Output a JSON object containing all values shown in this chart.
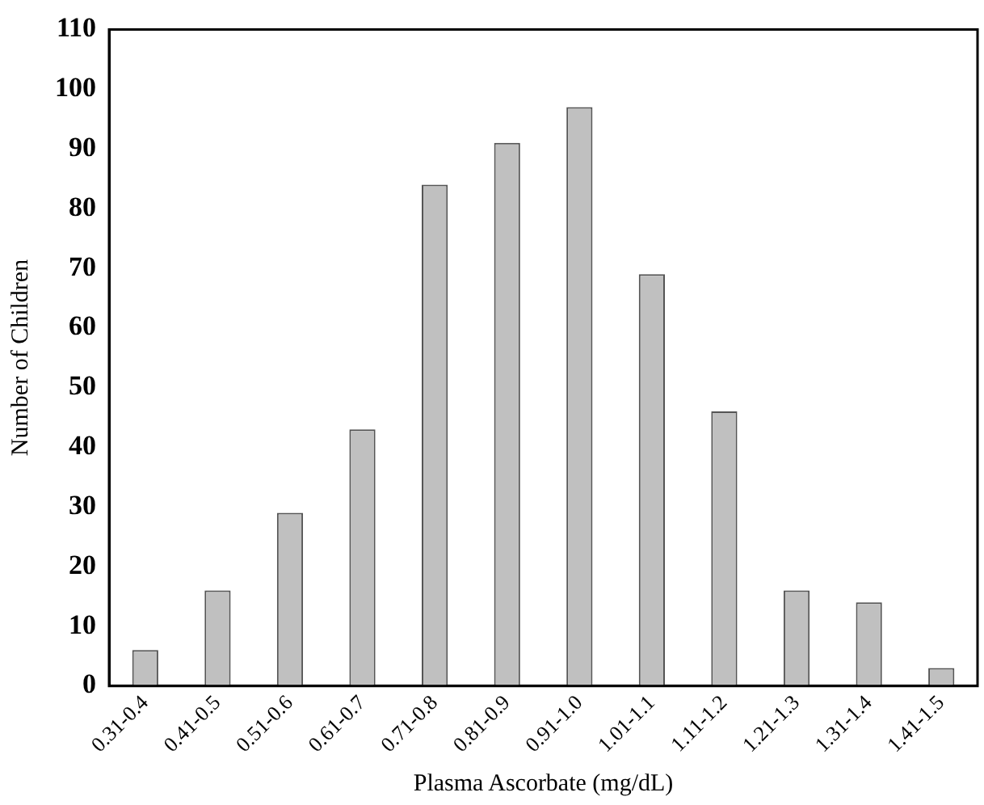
{
  "chart_data": {
    "type": "bar",
    "xlabel": "Plasma Ascorbate (mg/dL)",
    "ylabel": "Number of Children",
    "categories": [
      "0.31-0.4",
      "0.41-0.5",
      "0.51-0.6",
      "0.61-0.7",
      "0.71-0.8",
      "0.81-0.9",
      "0.91-1.0",
      "1.01-1.1",
      "1.11-1.2",
      "1.21-1.3",
      "1.31-1.4",
      "1.41-1.5"
    ],
    "values": [
      6,
      16,
      29,
      43,
      84,
      91,
      97,
      69,
      46,
      16,
      14,
      3
    ],
    "color": "#c0c0c0",
    "ylim": [
      0,
      110
    ],
    "yticks": [
      0,
      10,
      20,
      30,
      40,
      50,
      60,
      70,
      80,
      90,
      100,
      110
    ],
    "grid": false,
    "legend": false
  }
}
